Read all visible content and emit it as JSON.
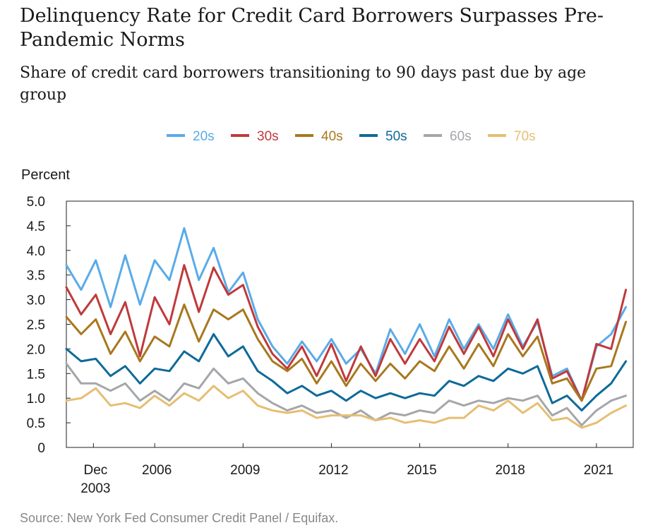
{
  "title": "Delinquency Rate for Credit Card Borrowers Surpasses Pre-Pandemic Norms",
  "subtitle": "Share of credit card borrowers transitioning to 90 days past due by age group",
  "source": "Source: New York Fed Consumer Credit Panel / Equifax.",
  "colors": {
    "20s": "#5aabe8",
    "30s": "#c0393b",
    "40s": "#a8781e",
    "50s": "#0e6a99",
    "60s": "#a4a6aa",
    "70s": "#e6be73"
  },
  "chart_data": {
    "type": "line",
    "title": "Delinquency Rate for Credit Card Borrowers Surpasses Pre-Pandemic Norms",
    "subtitle": "Share of credit card borrowers transitioning to 90 days past due by age group",
    "ylabel": "Percent",
    "xlabel": "",
    "ylim": [
      0,
      5
    ],
    "xlim": [
      2003.0,
      2022.25
    ],
    "y_ticks": [
      "0",
      "0.5",
      "1.0",
      "1.5",
      "2.0",
      "2.5",
      "3.0",
      "3.5",
      "4.0",
      "4.5",
      "5.0"
    ],
    "x_ticks": [
      {
        "x": 2003.92,
        "label": "Dec",
        "label2": "2003"
      },
      {
        "x": 2006.0,
        "label": "2006",
        "label2": ""
      },
      {
        "x": 2009.0,
        "label": "2009",
        "label2": ""
      },
      {
        "x": 2012.0,
        "label": "2012",
        "label2": ""
      },
      {
        "x": 2015.0,
        "label": "2015",
        "label2": ""
      },
      {
        "x": 2018.0,
        "label": "2018",
        "label2": ""
      },
      {
        "x": 2021.0,
        "label": "2021",
        "label2": ""
      }
    ],
    "legend_position": "top",
    "grid": false,
    "series": [
      {
        "name": "20s",
        "points": [
          [
            2003.0,
            3.7
          ],
          [
            2003.5,
            3.2
          ],
          [
            2004.0,
            3.8
          ],
          [
            2004.5,
            2.85
          ],
          [
            2005.0,
            3.9
          ],
          [
            2005.5,
            2.9
          ],
          [
            2006.0,
            3.8
          ],
          [
            2006.5,
            3.4
          ],
          [
            2007.0,
            4.45
          ],
          [
            2007.5,
            3.4
          ],
          [
            2008.0,
            4.05
          ],
          [
            2008.5,
            3.15
          ],
          [
            2009.0,
            3.55
          ],
          [
            2009.5,
            2.6
          ],
          [
            2010.0,
            2.05
          ],
          [
            2010.5,
            1.7
          ],
          [
            2011.0,
            2.15
          ],
          [
            2011.5,
            1.75
          ],
          [
            2012.0,
            2.2
          ],
          [
            2012.5,
            1.7
          ],
          [
            2013.0,
            2.0
          ],
          [
            2013.5,
            1.5
          ],
          [
            2014.0,
            2.4
          ],
          [
            2014.5,
            1.9
          ],
          [
            2015.0,
            2.5
          ],
          [
            2015.5,
            1.85
          ],
          [
            2016.0,
            2.6
          ],
          [
            2016.5,
            2.0
          ],
          [
            2017.0,
            2.5
          ],
          [
            2017.5,
            2.0
          ],
          [
            2018.0,
            2.7
          ],
          [
            2018.5,
            2.05
          ],
          [
            2019.0,
            2.55
          ],
          [
            2019.5,
            1.45
          ],
          [
            2020.0,
            1.6
          ],
          [
            2020.5,
            0.95
          ],
          [
            2021.0,
            2.05
          ],
          [
            2021.5,
            2.3
          ],
          [
            2022.0,
            2.85
          ]
        ]
      },
      {
        "name": "30s",
        "points": [
          [
            2003.0,
            3.25
          ],
          [
            2003.5,
            2.7
          ],
          [
            2004.0,
            3.1
          ],
          [
            2004.5,
            2.3
          ],
          [
            2005.0,
            2.95
          ],
          [
            2005.5,
            1.85
          ],
          [
            2006.0,
            3.05
          ],
          [
            2006.5,
            2.5
          ],
          [
            2007.0,
            3.7
          ],
          [
            2007.5,
            2.75
          ],
          [
            2008.0,
            3.65
          ],
          [
            2008.5,
            3.1
          ],
          [
            2009.0,
            3.3
          ],
          [
            2009.5,
            2.45
          ],
          [
            2010.0,
            1.9
          ],
          [
            2010.5,
            1.6
          ],
          [
            2011.0,
            2.05
          ],
          [
            2011.5,
            1.45
          ],
          [
            2012.0,
            2.1
          ],
          [
            2012.5,
            1.35
          ],
          [
            2013.0,
            2.05
          ],
          [
            2013.5,
            1.45
          ],
          [
            2014.0,
            2.2
          ],
          [
            2014.5,
            1.7
          ],
          [
            2015.0,
            2.2
          ],
          [
            2015.5,
            1.75
          ],
          [
            2016.0,
            2.45
          ],
          [
            2016.5,
            1.9
          ],
          [
            2017.0,
            2.45
          ],
          [
            2017.5,
            1.85
          ],
          [
            2018.0,
            2.6
          ],
          [
            2018.5,
            2.0
          ],
          [
            2019.0,
            2.6
          ],
          [
            2019.5,
            1.4
          ],
          [
            2020.0,
            1.55
          ],
          [
            2020.5,
            0.95
          ],
          [
            2021.0,
            2.1
          ],
          [
            2021.5,
            2.0
          ],
          [
            2022.0,
            3.2
          ]
        ]
      },
      {
        "name": "40s",
        "points": [
          [
            2003.0,
            2.65
          ],
          [
            2003.5,
            2.3
          ],
          [
            2004.0,
            2.6
          ],
          [
            2004.5,
            1.9
          ],
          [
            2005.0,
            2.35
          ],
          [
            2005.5,
            1.75
          ],
          [
            2006.0,
            2.25
          ],
          [
            2006.5,
            2.05
          ],
          [
            2007.0,
            2.9
          ],
          [
            2007.5,
            2.15
          ],
          [
            2008.0,
            2.8
          ],
          [
            2008.5,
            2.6
          ],
          [
            2009.0,
            2.8
          ],
          [
            2009.5,
            2.2
          ],
          [
            2010.0,
            1.75
          ],
          [
            2010.5,
            1.55
          ],
          [
            2011.0,
            1.8
          ],
          [
            2011.5,
            1.3
          ],
          [
            2012.0,
            1.75
          ],
          [
            2012.5,
            1.25
          ],
          [
            2013.0,
            1.7
          ],
          [
            2013.5,
            1.35
          ],
          [
            2014.0,
            1.7
          ],
          [
            2014.5,
            1.4
          ],
          [
            2015.0,
            1.75
          ],
          [
            2015.5,
            1.55
          ],
          [
            2016.0,
            2.05
          ],
          [
            2016.5,
            1.6
          ],
          [
            2017.0,
            2.1
          ],
          [
            2017.5,
            1.65
          ],
          [
            2018.0,
            2.3
          ],
          [
            2018.5,
            1.85
          ],
          [
            2019.0,
            2.25
          ],
          [
            2019.5,
            1.3
          ],
          [
            2020.0,
            1.4
          ],
          [
            2020.5,
            0.95
          ],
          [
            2021.0,
            1.6
          ],
          [
            2021.5,
            1.65
          ],
          [
            2022.0,
            2.55
          ]
        ]
      },
      {
        "name": "50s",
        "points": [
          [
            2003.0,
            2.0
          ],
          [
            2003.5,
            1.75
          ],
          [
            2004.0,
            1.8
          ],
          [
            2004.5,
            1.45
          ],
          [
            2005.0,
            1.65
          ],
          [
            2005.5,
            1.3
          ],
          [
            2006.0,
            1.6
          ],
          [
            2006.5,
            1.55
          ],
          [
            2007.0,
            1.95
          ],
          [
            2007.5,
            1.75
          ],
          [
            2008.0,
            2.3
          ],
          [
            2008.5,
            1.85
          ],
          [
            2009.0,
            2.05
          ],
          [
            2009.5,
            1.55
          ],
          [
            2010.0,
            1.35
          ],
          [
            2010.5,
            1.1
          ],
          [
            2011.0,
            1.25
          ],
          [
            2011.5,
            1.05
          ],
          [
            2012.0,
            1.15
          ],
          [
            2012.5,
            0.95
          ],
          [
            2013.0,
            1.15
          ],
          [
            2013.5,
            1.0
          ],
          [
            2014.0,
            1.1
          ],
          [
            2014.5,
            1.0
          ],
          [
            2015.0,
            1.1
          ],
          [
            2015.5,
            1.05
          ],
          [
            2016.0,
            1.35
          ],
          [
            2016.5,
            1.25
          ],
          [
            2017.0,
            1.45
          ],
          [
            2017.5,
            1.35
          ],
          [
            2018.0,
            1.6
          ],
          [
            2018.5,
            1.5
          ],
          [
            2019.0,
            1.65
          ],
          [
            2019.5,
            0.9
          ],
          [
            2020.0,
            1.05
          ],
          [
            2020.5,
            0.75
          ],
          [
            2021.0,
            1.05
          ],
          [
            2021.5,
            1.3
          ],
          [
            2022.0,
            1.75
          ]
        ]
      },
      {
        "name": "60s",
        "points": [
          [
            2003.0,
            1.7
          ],
          [
            2003.5,
            1.3
          ],
          [
            2004.0,
            1.3
          ],
          [
            2004.5,
            1.15
          ],
          [
            2005.0,
            1.3
          ],
          [
            2005.5,
            0.95
          ],
          [
            2006.0,
            1.15
          ],
          [
            2006.5,
            0.95
          ],
          [
            2007.0,
            1.3
          ],
          [
            2007.5,
            1.2
          ],
          [
            2008.0,
            1.6
          ],
          [
            2008.5,
            1.3
          ],
          [
            2009.0,
            1.4
          ],
          [
            2009.5,
            1.1
          ],
          [
            2010.0,
            0.9
          ],
          [
            2010.5,
            0.75
          ],
          [
            2011.0,
            0.85
          ],
          [
            2011.5,
            0.7
          ],
          [
            2012.0,
            0.75
          ],
          [
            2012.5,
            0.6
          ],
          [
            2013.0,
            0.75
          ],
          [
            2013.5,
            0.55
          ],
          [
            2014.0,
            0.7
          ],
          [
            2014.5,
            0.65
          ],
          [
            2015.0,
            0.75
          ],
          [
            2015.5,
            0.7
          ],
          [
            2016.0,
            0.95
          ],
          [
            2016.5,
            0.85
          ],
          [
            2017.0,
            0.95
          ],
          [
            2017.5,
            0.9
          ],
          [
            2018.0,
            1.0
          ],
          [
            2018.5,
            0.95
          ],
          [
            2019.0,
            1.05
          ],
          [
            2019.5,
            0.65
          ],
          [
            2020.0,
            0.8
          ],
          [
            2020.5,
            0.45
          ],
          [
            2021.0,
            0.75
          ],
          [
            2021.5,
            0.95
          ],
          [
            2022.0,
            1.05
          ]
        ]
      },
      {
        "name": "70s",
        "points": [
          [
            2003.0,
            0.95
          ],
          [
            2003.5,
            1.0
          ],
          [
            2004.0,
            1.2
          ],
          [
            2004.5,
            0.85
          ],
          [
            2005.0,
            0.9
          ],
          [
            2005.5,
            0.8
          ],
          [
            2006.0,
            1.05
          ],
          [
            2006.5,
            0.85
          ],
          [
            2007.0,
            1.1
          ],
          [
            2007.5,
            0.95
          ],
          [
            2008.0,
            1.25
          ],
          [
            2008.5,
            1.0
          ],
          [
            2009.0,
            1.15
          ],
          [
            2009.5,
            0.85
          ],
          [
            2010.0,
            0.75
          ],
          [
            2010.5,
            0.7
          ],
          [
            2011.0,
            0.75
          ],
          [
            2011.5,
            0.6
          ],
          [
            2012.0,
            0.65
          ],
          [
            2012.5,
            0.65
          ],
          [
            2013.0,
            0.65
          ],
          [
            2013.5,
            0.55
          ],
          [
            2014.0,
            0.6
          ],
          [
            2014.5,
            0.5
          ],
          [
            2015.0,
            0.55
          ],
          [
            2015.5,
            0.5
          ],
          [
            2016.0,
            0.6
          ],
          [
            2016.5,
            0.6
          ],
          [
            2017.0,
            0.85
          ],
          [
            2017.5,
            0.75
          ],
          [
            2018.0,
            0.95
          ],
          [
            2018.5,
            0.7
          ],
          [
            2019.0,
            0.9
          ],
          [
            2019.5,
            0.55
          ],
          [
            2020.0,
            0.6
          ],
          [
            2020.5,
            0.4
          ],
          [
            2021.0,
            0.5
          ],
          [
            2021.5,
            0.7
          ],
          [
            2022.0,
            0.85
          ]
        ]
      }
    ]
  }
}
